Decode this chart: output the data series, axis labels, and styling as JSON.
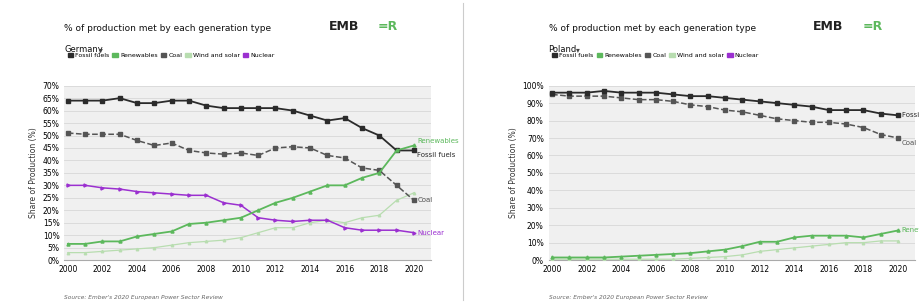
{
  "years": [
    2000,
    2001,
    2002,
    2003,
    2004,
    2005,
    2006,
    2007,
    2008,
    2009,
    2010,
    2011,
    2012,
    2013,
    2014,
    2015,
    2016,
    2017,
    2018,
    2019,
    2020
  ],
  "de_fossil_fuels": [
    64,
    64,
    64,
    65,
    63,
    63,
    64,
    64,
    62,
    61,
    61,
    61,
    61,
    60,
    58,
    56,
    57,
    53,
    50,
    44,
    44
  ],
  "de_renewables": [
    6.5,
    6.5,
    7.5,
    7.5,
    9.5,
    10.5,
    11.5,
    14.5,
    15,
    16,
    17,
    20,
    23,
    25,
    27.5,
    30,
    30,
    33,
    35,
    44,
    46
  ],
  "de_coal": [
    51,
    50.5,
    50.5,
    50.5,
    48,
    46,
    47,
    44,
    43,
    42.5,
    43,
    42,
    45,
    45.5,
    45,
    42,
    41,
    37,
    36,
    30,
    24
  ],
  "de_wind_solar": [
    3,
    3,
    3.5,
    4,
    4.5,
    5,
    6,
    7,
    7.5,
    8,
    9,
    11,
    13,
    13,
    15,
    16,
    15,
    17,
    18,
    24,
    27
  ],
  "de_nuclear": [
    30,
    30,
    29,
    28.5,
    27.5,
    27,
    26.5,
    26,
    26,
    23,
    22,
    17,
    16,
    15.5,
    16,
    16,
    13,
    12,
    12,
    12,
    11
  ],
  "pl_fossil_fuels": [
    96,
    96,
    96,
    97,
    96,
    96,
    96,
    95,
    94,
    94,
    93,
    92,
    91,
    90,
    89,
    88,
    86,
    86,
    86,
    84,
    83
  ],
  "pl_renewables": [
    1.5,
    1.5,
    1.5,
    1.5,
    2,
    2.5,
    3,
    3.5,
    4,
    5,
    6,
    8,
    10.5,
    10.5,
    13,
    14,
    14,
    14,
    13,
    15,
    17
  ],
  "pl_coal": [
    95,
    94,
    94,
    94,
    93,
    92,
    92,
    91,
    89,
    88,
    86,
    85,
    83,
    81,
    80,
    79,
    79,
    78,
    76,
    72,
    70
  ],
  "pl_wind_solar": [
    0.5,
    0.5,
    0.5,
    0.5,
    0.5,
    0.5,
    0.5,
    0.5,
    1,
    1.5,
    2,
    3,
    5,
    6,
    7,
    8,
    9,
    10,
    10,
    11,
    11
  ],
  "pl_nuclear": [
    0,
    0,
    0,
    0,
    0,
    0,
    0,
    0,
    0,
    0,
    0,
    0,
    0,
    0,
    0,
    0,
    0,
    0,
    0,
    0,
    0
  ],
  "color_fossil": "#2b2b2b",
  "color_renewables": "#5cb85c",
  "color_coal": "#555555",
  "color_wind": "#b8ddb0",
  "color_nuclear": "#9b30d0",
  "bg_color": "#f0f0f0",
  "grid_color": "#d8d8d8",
  "title": "% of production met by each generation type",
  "ylabel": "Share of Production (%)",
  "source_de": "Source: Ember's 2020 European Power Sector Review",
  "source_pl": "Source: Ember's 2020 European Power Sector Review",
  "ember_dark": "#222222",
  "ember_green": "#5cb85c",
  "yticks_de": [
    0,
    5,
    10,
    15,
    20,
    25,
    30,
    35,
    40,
    45,
    50,
    55,
    60,
    65,
    70
  ],
  "yticks_pl": [
    0,
    10,
    20,
    30,
    40,
    50,
    60,
    70,
    80,
    90,
    100
  ]
}
